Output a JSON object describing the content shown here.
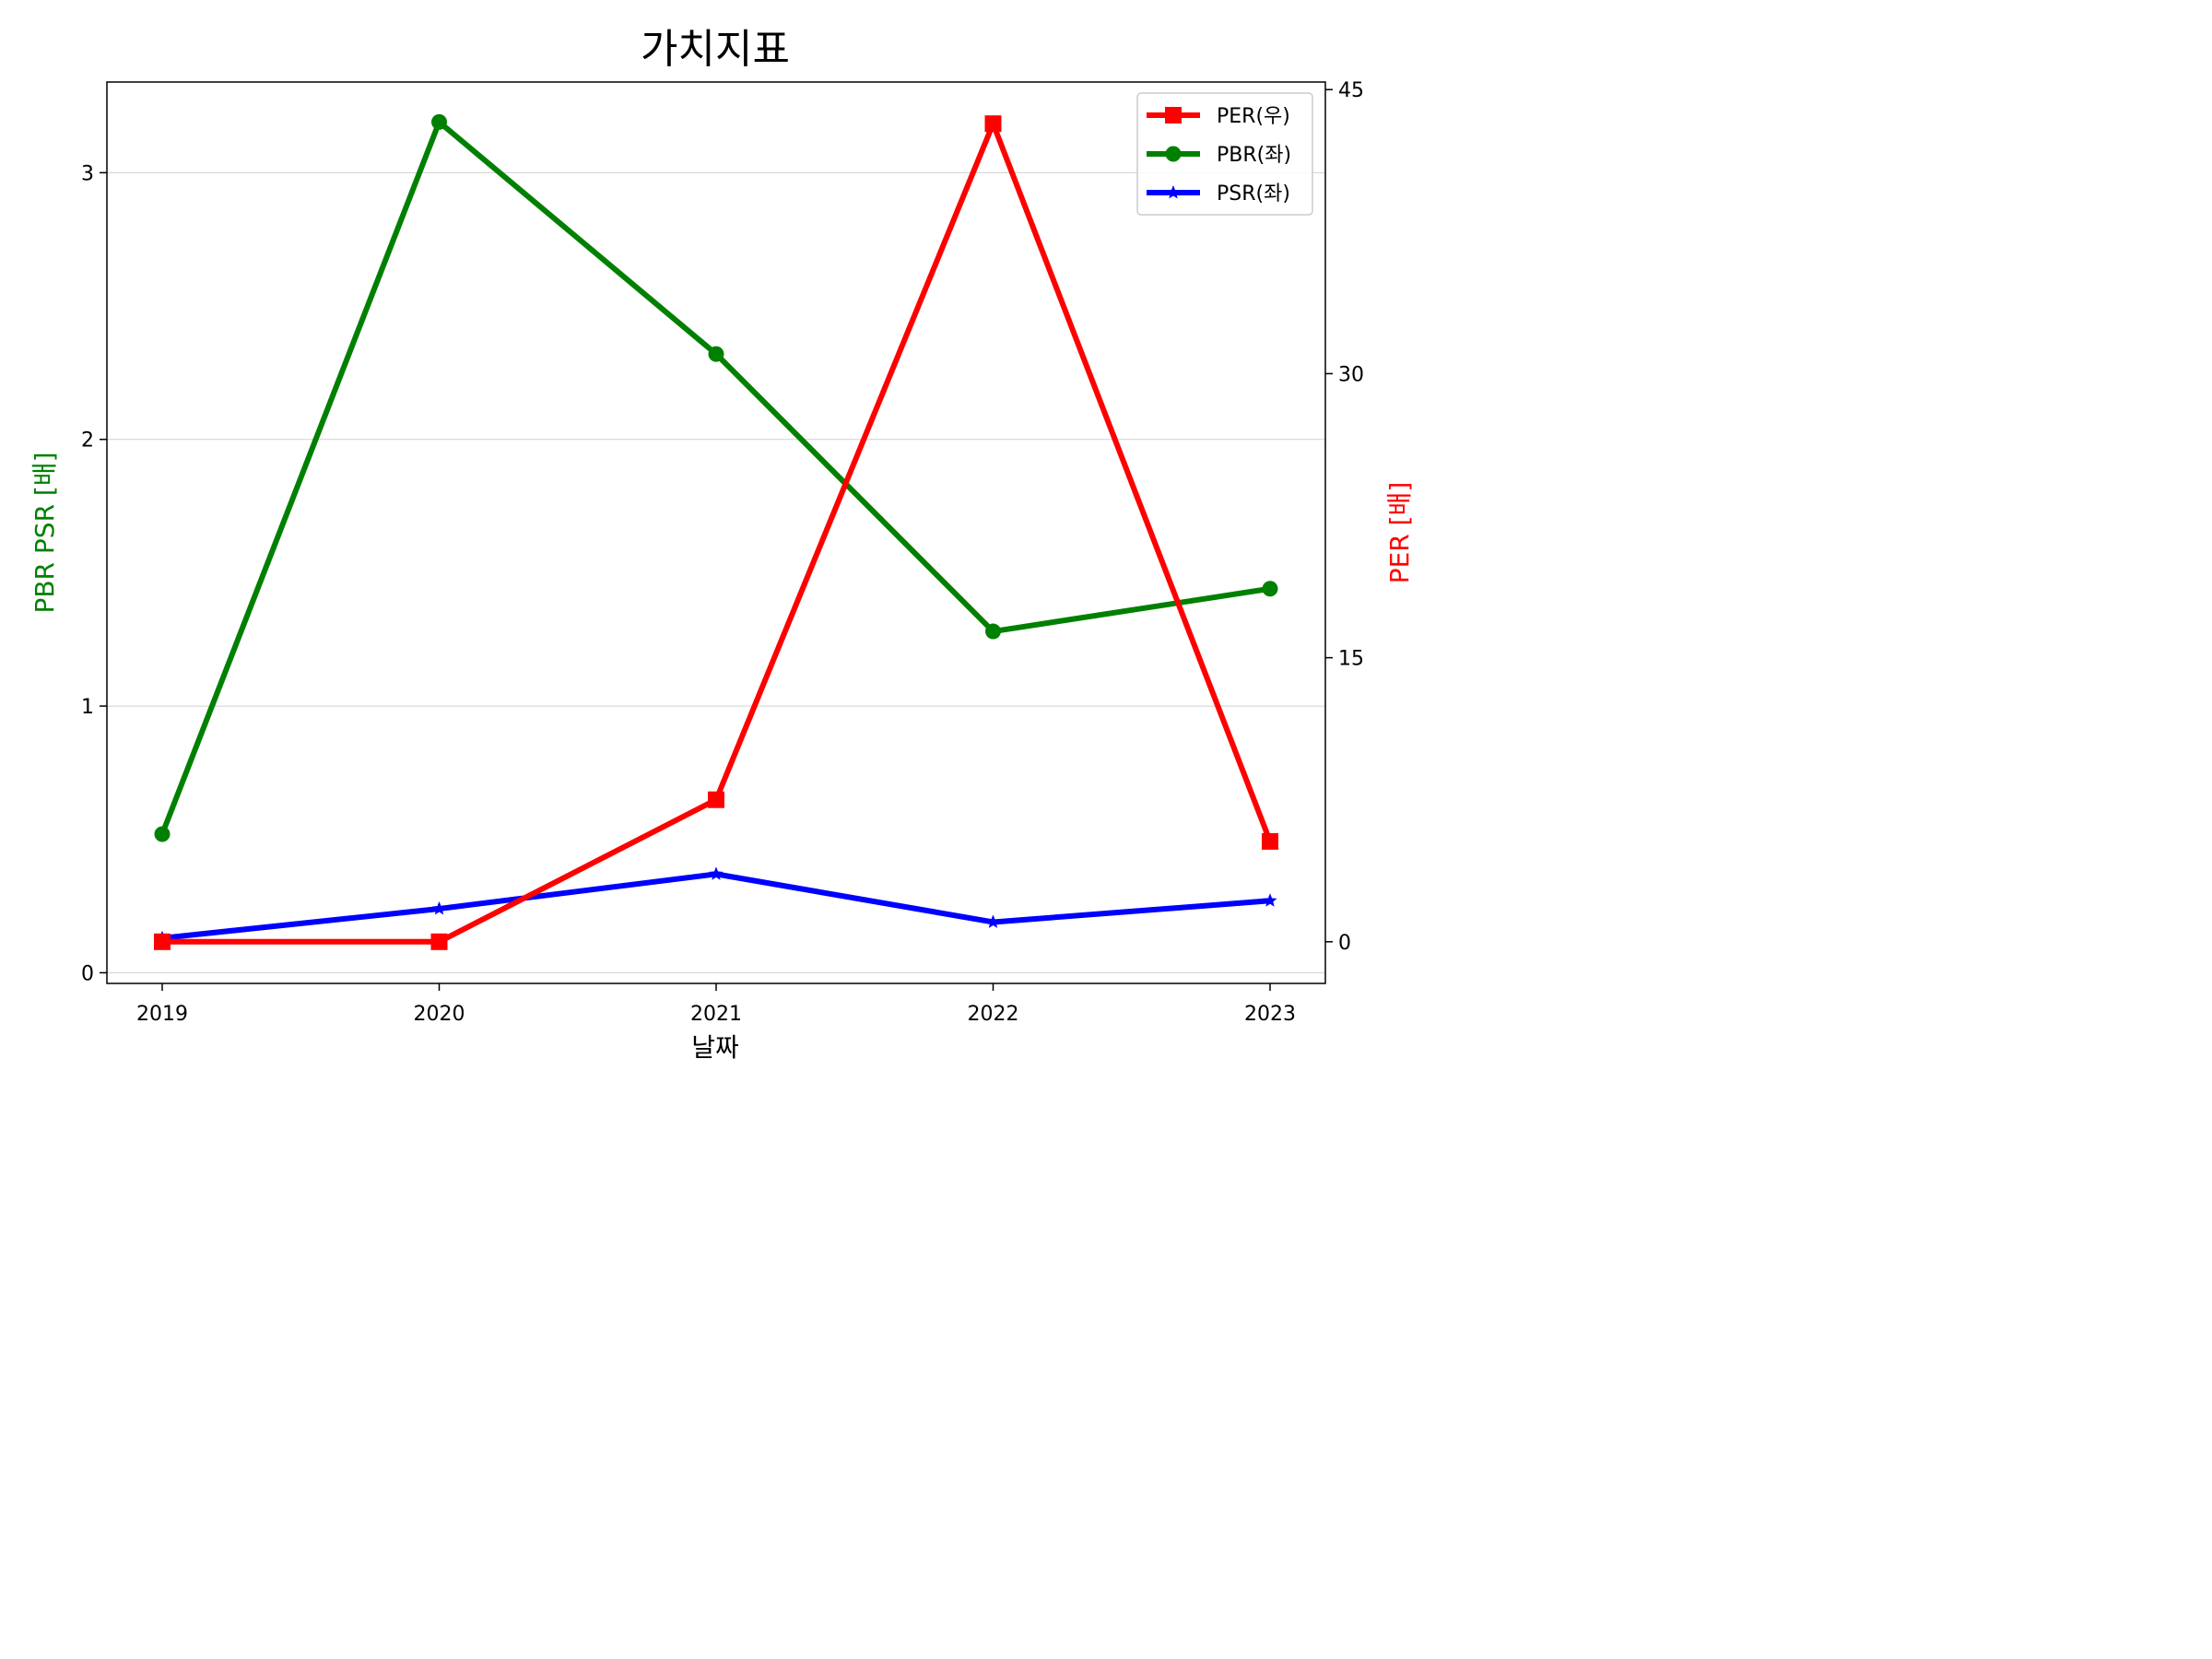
{
  "chart_data": {
    "type": "line",
    "title": "가치지표",
    "xlabel": "날짜",
    "ylabel_left": "PBR PSR [배]",
    "ylabel_right": "PER [배]",
    "categories": [
      "2019",
      "2020",
      "2021",
      "2022",
      "2023"
    ],
    "left_ylim": [
      -0.04,
      3.34
    ],
    "left_yticks": [
      "0",
      "1",
      "2",
      "3"
    ],
    "right_ylim": [
      -2.2,
      45.4
    ],
    "right_yticks": [
      "0",
      "15",
      "30",
      "45"
    ],
    "grid": "y (left axis)",
    "legend_position": "top-right",
    "series": [
      {
        "name": "PER(우)",
        "axis": "right",
        "color": "#ff0000",
        "marker": "square",
        "values": [
          0,
          0,
          7.5,
          43.2,
          5.3
        ]
      },
      {
        "name": "PBR(좌)",
        "axis": "left",
        "color": "#008000",
        "marker": "circle",
        "values": [
          0.52,
          3.19,
          2.32,
          1.28,
          1.44
        ]
      },
      {
        "name": "PSR(좌)",
        "axis": "left",
        "color": "#0000ff",
        "marker": "star",
        "values": [
          0.13,
          0.24,
          0.37,
          0.19,
          0.27
        ]
      }
    ]
  }
}
